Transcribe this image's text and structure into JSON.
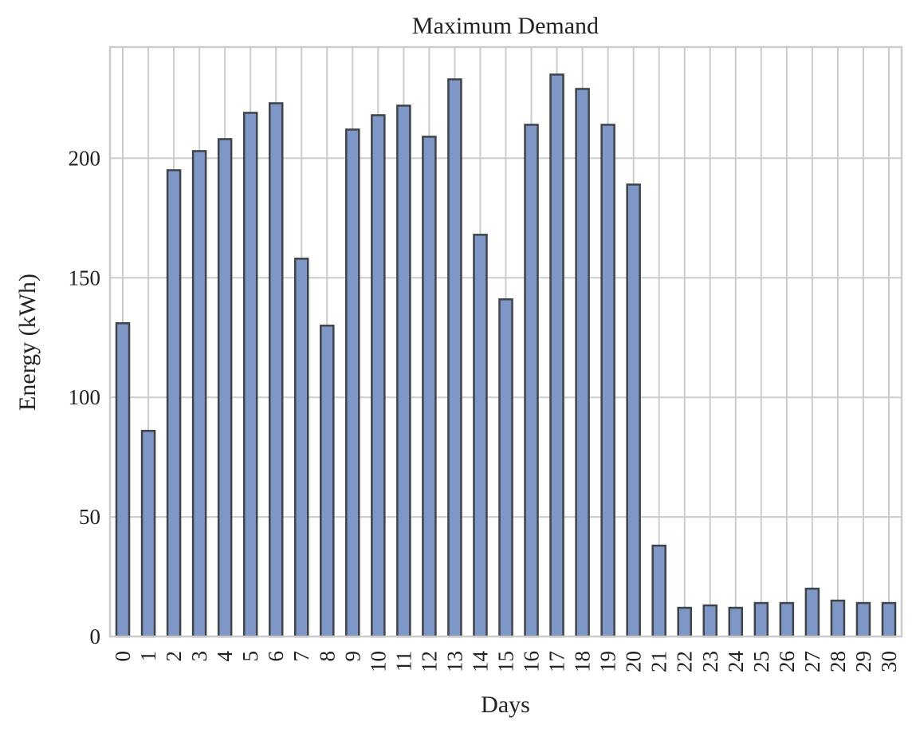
{
  "chart_data": {
    "type": "bar",
    "title": "Maximum Demand",
    "xlabel": "Days",
    "ylabel": "Energy (kWh)",
    "categories": [
      "0",
      "1",
      "2",
      "3",
      "4",
      "5",
      "6",
      "7",
      "8",
      "9",
      "10",
      "11",
      "12",
      "13",
      "14",
      "15",
      "16",
      "17",
      "18",
      "19",
      "20",
      "21",
      "22",
      "23",
      "24",
      "25",
      "26",
      "27",
      "28",
      "29",
      "30"
    ],
    "values": [
      131,
      86,
      195,
      203,
      208,
      219,
      223,
      158,
      130,
      212,
      218,
      222,
      209,
      233,
      168,
      141,
      214,
      235,
      229,
      214,
      189,
      38,
      12,
      13,
      12,
      14,
      14,
      20,
      15,
      14,
      14
    ],
    "yticks": [
      0,
      50,
      100,
      150,
      200
    ],
    "ylim": [
      0,
      246.5
    ],
    "grid": true,
    "legend": "none",
    "colors": {
      "bar_fill": "#7f97c6",
      "bar_edge": "#3f4449",
      "grid": "#cccccc",
      "spine": "#cccccc"
    }
  }
}
